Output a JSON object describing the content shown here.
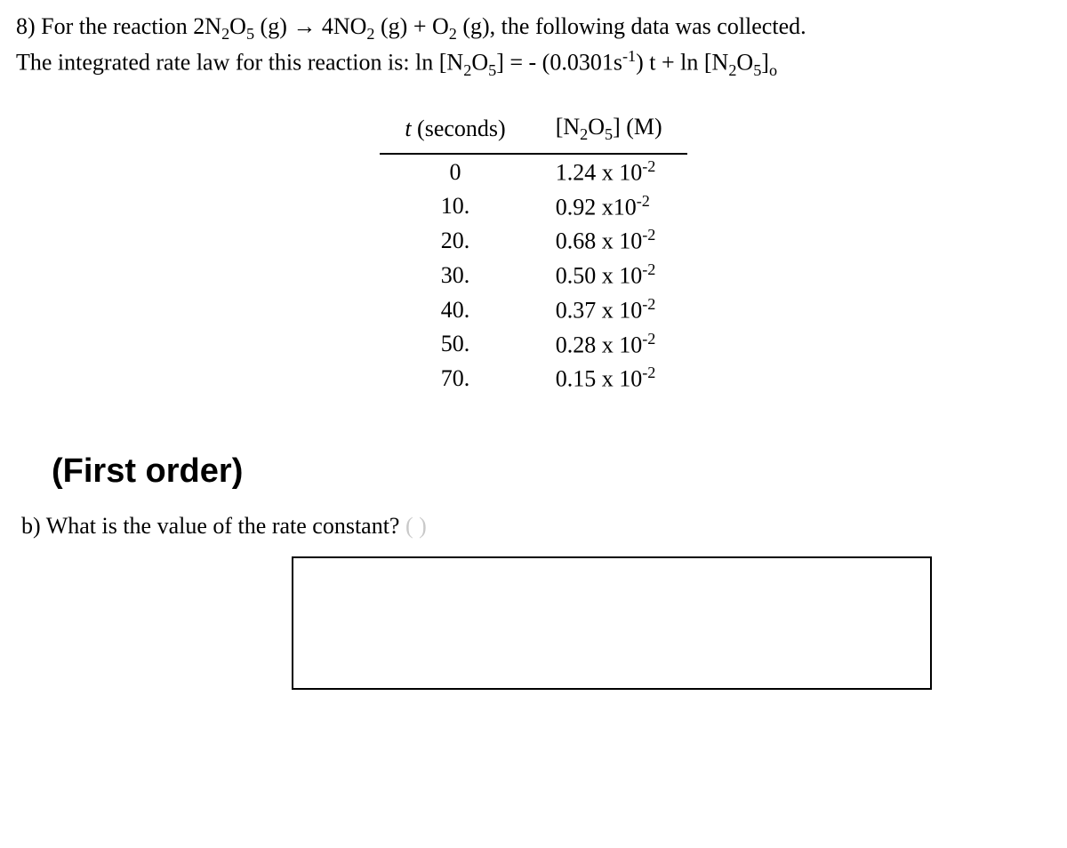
{
  "question": {
    "number": "8)",
    "line1_prefix": "For the reaction 2N",
    "line1_mid1": "O",
    "line1_mid2": " (g) → 4NO",
    "line1_mid3": " (g) + O",
    "line1_suffix": " (g), the following data was collected.",
    "line2_prefix": "The integrated rate law for this reaction is: ln [N",
    "line2_mid1": "O",
    "line2_mid2": "] = - (0.0301s",
    "line2_mid3": ") t + ln [N",
    "line2_mid4": "O",
    "line2_suffix": "]",
    "sub2": "2",
    "sub5": "5",
    "sup_neg1": "-1",
    "sub_o": "o"
  },
  "table": {
    "header_t_italic": "t",
    "header_t_rest": " (seconds)",
    "header_conc_prefix": "[N",
    "header_conc_mid": "O",
    "header_conc_suffix": "] (M)",
    "rows": [
      {
        "t": "0",
        "c_prefix": "1.24 x 10",
        "c_exp": "-2"
      },
      {
        "t": "10.",
        "c_prefix": "0.92 x10",
        "c_exp": "-2"
      },
      {
        "t": "20.",
        "c_prefix": "0.68 x 10",
        "c_exp": "-2"
      },
      {
        "t": "30.",
        "c_prefix": "0.50 x 10",
        "c_exp": "-2"
      },
      {
        "t": "40.",
        "c_prefix": "0.37 x 10",
        "c_exp": "-2"
      },
      {
        "t": "50.",
        "c_prefix": "0.28 x 10",
        "c_exp": "-2"
      },
      {
        "t": "70.",
        "c_prefix": "0.15 x 10",
        "c_exp": "-2"
      }
    ]
  },
  "first_order_label": "(First order)",
  "part_b": {
    "label": "b) What is the value of the rate constant? ",
    "hint": "(      )"
  }
}
